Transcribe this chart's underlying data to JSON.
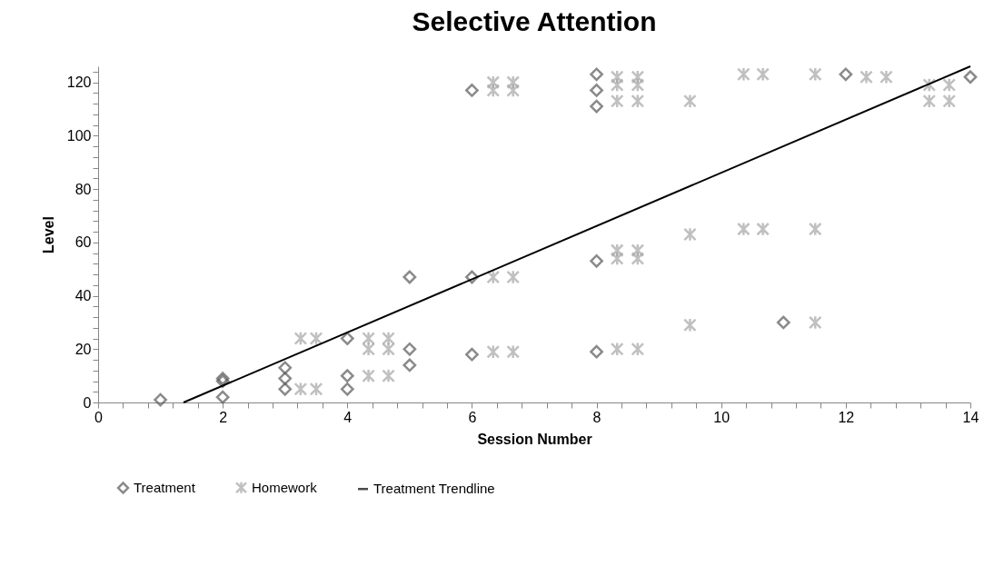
{
  "chart_data": {
    "type": "scatter",
    "title": "Selective Attention",
    "xlabel": "Session Number",
    "ylabel": "Level",
    "xlim": [
      0,
      14
    ],
    "ylim": [
      0,
      126
    ],
    "xticks": [
      0,
      {
        "value": 0.4,
        "label": null
      },
      {
        "value": 0.8,
        "label": null
      },
      {
        "value": 1.2,
        "label": null
      },
      {
        "value": 1.6,
        "label": null
      },
      2,
      {
        "value": 2.4,
        "label": null
      },
      {
        "value": 2.8,
        "label": null
      },
      {
        "value": 3.2,
        "label": null
      },
      {
        "value": 3.6,
        "label": null
      },
      4,
      {
        "value": 4.4,
        "label": null
      },
      {
        "value": 4.8,
        "label": null
      },
      {
        "value": 5.2,
        "label": null
      },
      {
        "value": 5.6,
        "label": null
      },
      6,
      {
        "value": 6.4,
        "label": null
      },
      {
        "value": 6.8,
        "label": null
      },
      {
        "value": 7.2,
        "label": null
      },
      {
        "value": 7.6,
        "label": null
      },
      8,
      {
        "value": 8.4,
        "label": null
      },
      {
        "value": 8.8,
        "label": null
      },
      {
        "value": 9.2,
        "label": null
      },
      {
        "value": 9.6,
        "label": null
      },
      10,
      {
        "value": 10.4,
        "label": null
      },
      {
        "value": 10.8,
        "label": null
      },
      {
        "value": 11.2,
        "label": null
      },
      {
        "value": 11.6,
        "label": null
      },
      12,
      {
        "value": 12.4,
        "label": null
      },
      {
        "value": 12.8,
        "label": null
      },
      {
        "value": 13.2,
        "label": null
      },
      {
        "value": 13.6,
        "label": null
      },
      14
    ],
    "yticks": [
      0,
      {
        "value": 4,
        "label": null
      },
      {
        "value": 8,
        "label": null
      },
      {
        "value": 12,
        "label": null
      },
      {
        "value": 16,
        "label": null
      },
      20,
      {
        "value": 24,
        "label": null
      },
      {
        "value": 28,
        "label": null
      },
      {
        "value": 32,
        "label": null
      },
      {
        "value": 36,
        "label": null
      },
      40,
      {
        "value": 44,
        "label": null
      },
      {
        "value": 48,
        "label": null
      },
      {
        "value": 52,
        "label": null
      },
      {
        "value": 56,
        "label": null
      },
      60,
      {
        "value": 64,
        "label": null
      },
      {
        "value": 68,
        "label": null
      },
      {
        "value": 72,
        "label": null
      },
      {
        "value": 76,
        "label": null
      },
      80,
      {
        "value": 84,
        "label": null
      },
      {
        "value": 88,
        "label": null
      },
      {
        "value": 92,
        "label": null
      },
      {
        "value": 96,
        "label": null
      },
      100,
      {
        "value": 104,
        "label": null
      },
      {
        "value": 108,
        "label": null
      },
      {
        "value": 112,
        "label": null
      },
      {
        "value": 116,
        "label": null
      },
      120,
      {
        "value": 124,
        "label": null
      }
    ],
    "grid": false,
    "legend": "bottom",
    "series": [
      {
        "name": "Treatment",
        "type": "scatter",
        "marker": "diamond",
        "color": "#595959",
        "x": [
          1,
          2,
          2,
          2,
          3,
          3,
          3,
          4,
          4,
          4,
          5,
          5,
          5,
          6,
          6,
          6,
          8,
          8,
          8,
          8,
          8,
          11,
          12,
          14
        ],
        "values": [
          1,
          9,
          8,
          2,
          13,
          9,
          5,
          24,
          10,
          5,
          47,
          20,
          14,
          117,
          47,
          18,
          123,
          117,
          111,
          53,
          19,
          30,
          123,
          122
        ]
      },
      {
        "name": "Homework",
        "type": "scatter",
        "marker": "cross",
        "color": "#a6a6a6",
        "x": [
          3.25,
          3.5,
          3.25,
          3.5,
          4.34,
          4.66,
          4.34,
          4.66,
          4.34,
          4.66,
          6.34,
          6.66,
          6.34,
          6.66,
          6.34,
          6.66,
          6.34,
          6.66,
          8.33,
          8.66,
          8.33,
          8.66,
          8.33,
          8.66,
          8.33,
          8.66,
          8.33,
          8.66,
          8.33,
          8.66,
          9.5,
          9.5,
          9.5,
          10.36,
          10.67,
          11.51,
          10.36,
          10.67,
          11.51,
          11.51,
          12.33,
          12.65,
          13.34,
          13.66,
          13.34,
          13.66
        ],
        "values": [
          24,
          24,
          5,
          5,
          24,
          24,
          20,
          20,
          10,
          10,
          120,
          120,
          117,
          117,
          47,
          47,
          19,
          19,
          122,
          122,
          119,
          119,
          113,
          113,
          57,
          57,
          54,
          54,
          20,
          20,
          113,
          63,
          29,
          123,
          123,
          123,
          65,
          65,
          65,
          30,
          122,
          122,
          119,
          119,
          113,
          113
        ]
      },
      {
        "name": "Treatment Trendline",
        "type": "line",
        "line_style": "solid",
        "color": "#000000",
        "x": [
          1.37,
          14
        ],
        "values": [
          0,
          126
        ]
      }
    ]
  }
}
